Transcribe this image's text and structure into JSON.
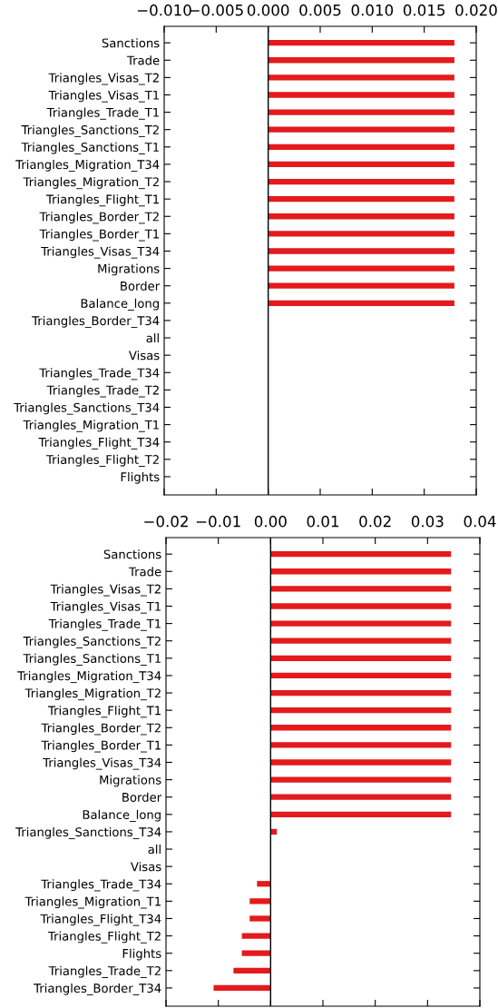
{
  "chart_data": [
    {
      "type": "bar",
      "orientation": "horizontal",
      "categories": [
        "Sanctions",
        "Trade",
        "Triangles_Visas_T2",
        "Triangles_Visas_T1",
        "Triangles_Trade_T1",
        "Triangles_Sanctions_T2",
        "Triangles_Sanctions_T1",
        "Triangles_Migration_T34",
        "Triangles_Migration_T2",
        "Triangles_Flight_T1",
        "Triangles_Border_T2",
        "Triangles_Border_T1",
        "Triangles_Visas_T34",
        "Migrations",
        "Border",
        "Balance_long",
        "Triangles_Border_T34",
        "all",
        "Visas",
        "Triangles_Trade_T34",
        "Triangles_Trade_T2",
        "Triangles_Sanctions_T34",
        "Triangles_Migration_T1",
        "Triangles_Flight_T34",
        "Triangles_Flight_T2",
        "Flights"
      ],
      "values": [
        0.0179,
        0.0179,
        0.0179,
        0.0179,
        0.0179,
        0.0179,
        0.0179,
        0.0179,
        0.0179,
        0.0179,
        0.0179,
        0.0179,
        0.0179,
        0.0179,
        0.0179,
        0.0179,
        0,
        0,
        0,
        0,
        0,
        0,
        0,
        0,
        0,
        0
      ],
      "color": "#e41a1c",
      "xlim": [
        -0.01,
        0.02
      ],
      "xticks": [
        {
          "value": -0.01,
          "label": "−0.010"
        },
        {
          "value": -0.005,
          "label": "−0.005"
        },
        {
          "value": 0,
          "label": "0.000"
        },
        {
          "value": 0.005,
          "label": "0.005"
        },
        {
          "value": 0.01,
          "label": "0.010"
        },
        {
          "value": 0.015,
          "label": "0.015"
        },
        {
          "value": 0.02,
          "label": "0.020"
        }
      ],
      "ref_lines": [
        {
          "axis": "x",
          "value": 0,
          "color": "#000000"
        }
      ],
      "grid": false,
      "legend": false
    },
    {
      "type": "bar",
      "orientation": "horizontal",
      "categories": [
        "Sanctions",
        "Trade",
        "Triangles_Visas_T2",
        "Triangles_Visas_T1",
        "Triangles_Trade_T1",
        "Triangles_Sanctions_T2",
        "Triangles_Sanctions_T1",
        "Triangles_Migration_T34",
        "Triangles_Migration_T2",
        "Triangles_Flight_T1",
        "Triangles_Border_T2",
        "Triangles_Border_T1",
        "Triangles_Visas_T34",
        "Migrations",
        "Border",
        "Balance_long",
        "Triangles_Sanctions_T34",
        "all",
        "Visas",
        "Triangles_Trade_T34",
        "Triangles_Migration_T1",
        "Triangles_Flight_T34",
        "Triangles_Flight_T2",
        "Flights",
        "Triangles_Trade_T2",
        "Triangles_Border_T34"
      ],
      "values": [
        0.0345,
        0.0345,
        0.0345,
        0.0345,
        0.0345,
        0.0345,
        0.0345,
        0.0345,
        0.0345,
        0.0345,
        0.0345,
        0.0345,
        0.0345,
        0.0345,
        0.0345,
        0.0345,
        0.0012,
        0,
        0,
        -0.0026,
        -0.004,
        -0.004,
        -0.0055,
        -0.0055,
        -0.0071,
        -0.0109
      ],
      "color": "#e41a1c",
      "xlim": [
        -0.02,
        0.04
      ],
      "xticks": [
        {
          "value": -0.02,
          "label": "−0.02"
        },
        {
          "value": -0.01,
          "label": "−0.01"
        },
        {
          "value": 0,
          "label": "0.00"
        },
        {
          "value": 0.01,
          "label": "0.01"
        },
        {
          "value": 0.02,
          "label": "0.02"
        },
        {
          "value": 0.03,
          "label": "0.03"
        },
        {
          "value": 0.04,
          "label": "0.04"
        }
      ],
      "ref_lines": [
        {
          "axis": "x",
          "value": 0,
          "color": "#000000"
        }
      ],
      "grid": false,
      "legend": false
    }
  ]
}
